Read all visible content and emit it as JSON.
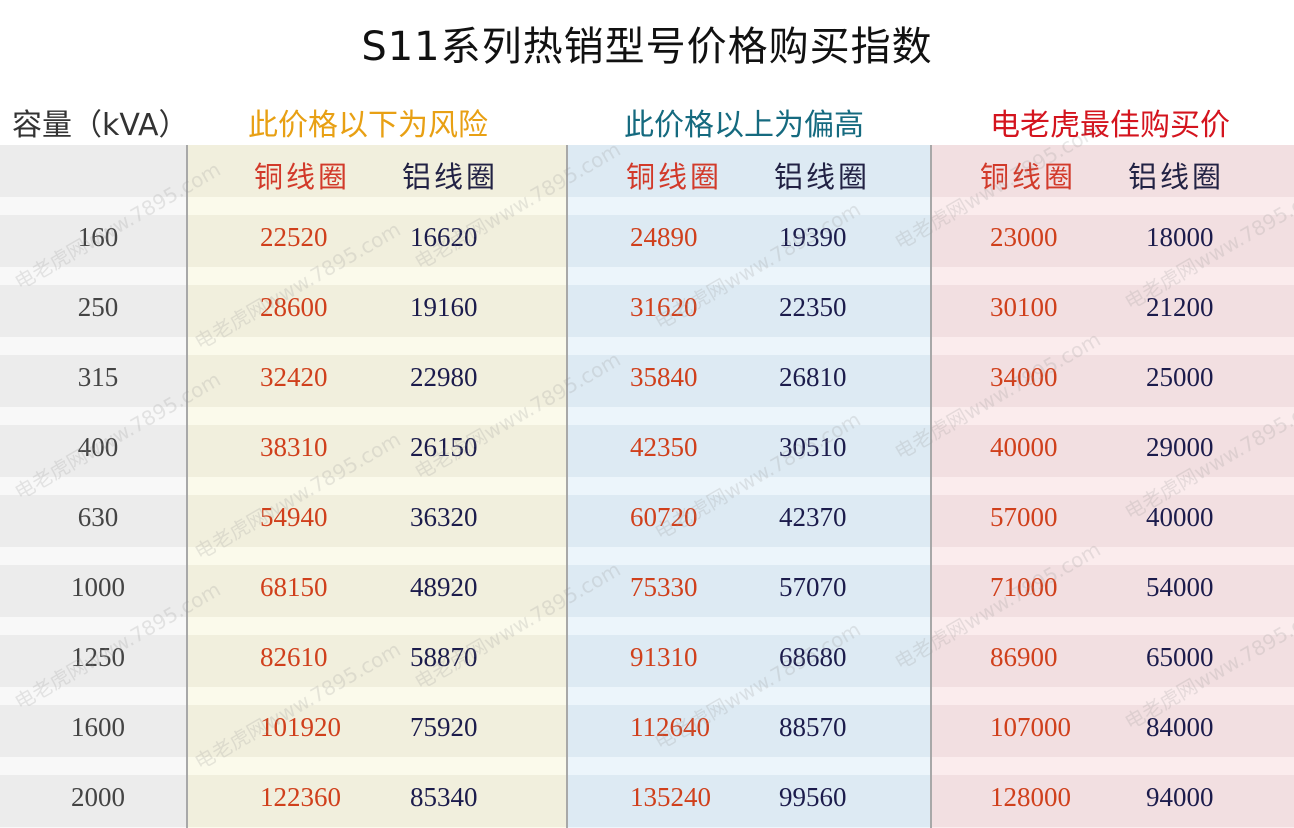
{
  "title": "S11系列热销型号价格购买指数",
  "headers": {
    "capacity": "容量（kVA）",
    "below_risk": "此价格以下为风险",
    "above_high": "此价格以上为偏高",
    "best_price": "电老虎最佳购买价"
  },
  "subheaders": {
    "copper": "铜线圈",
    "aluminum": "铝线圈"
  },
  "watermark": "电老虎网www.7895.com",
  "rows": [
    {
      "capacity": "160",
      "low_cu": "22520",
      "low_al": "16620",
      "high_cu": "24890",
      "high_al": "19390",
      "best_cu": "23000",
      "best_al": "18000"
    },
    {
      "capacity": "250",
      "low_cu": "28600",
      "low_al": "19160",
      "high_cu": "31620",
      "high_al": "22350",
      "best_cu": "30100",
      "best_al": "21200"
    },
    {
      "capacity": "315",
      "low_cu": "32420",
      "low_al": "22980",
      "high_cu": "35840",
      "high_al": "26810",
      "best_cu": "34000",
      "best_al": "25000"
    },
    {
      "capacity": "400",
      "low_cu": "38310",
      "low_al": "26150",
      "high_cu": "42350",
      "high_al": "30510",
      "best_cu": "40000",
      "best_al": "29000"
    },
    {
      "capacity": "630",
      "low_cu": "54940",
      "low_al": "36320",
      "high_cu": "60720",
      "high_al": "42370",
      "best_cu": "57000",
      "best_al": "40000"
    },
    {
      "capacity": "1000",
      "low_cu": "68150",
      "low_al": "48920",
      "high_cu": "75330",
      "high_al": "57070",
      "best_cu": "71000",
      "best_al": "54000"
    },
    {
      "capacity": "1250",
      "low_cu": "82610",
      "low_al": "58870",
      "high_cu": "91310",
      "high_al": "68680",
      "best_cu": "86900",
      "best_al": "65000"
    },
    {
      "capacity": "1600",
      "low_cu": "101920",
      "low_al": "75920",
      "high_cu": "112640",
      "high_al": "88570",
      "best_cu": "107000",
      "best_al": "84000"
    },
    {
      "capacity": "2000",
      "low_cu": "122360",
      "low_al": "85340",
      "high_cu": "135240",
      "high_al": "99560",
      "best_cu": "128000",
      "best_al": "94000"
    }
  ]
}
